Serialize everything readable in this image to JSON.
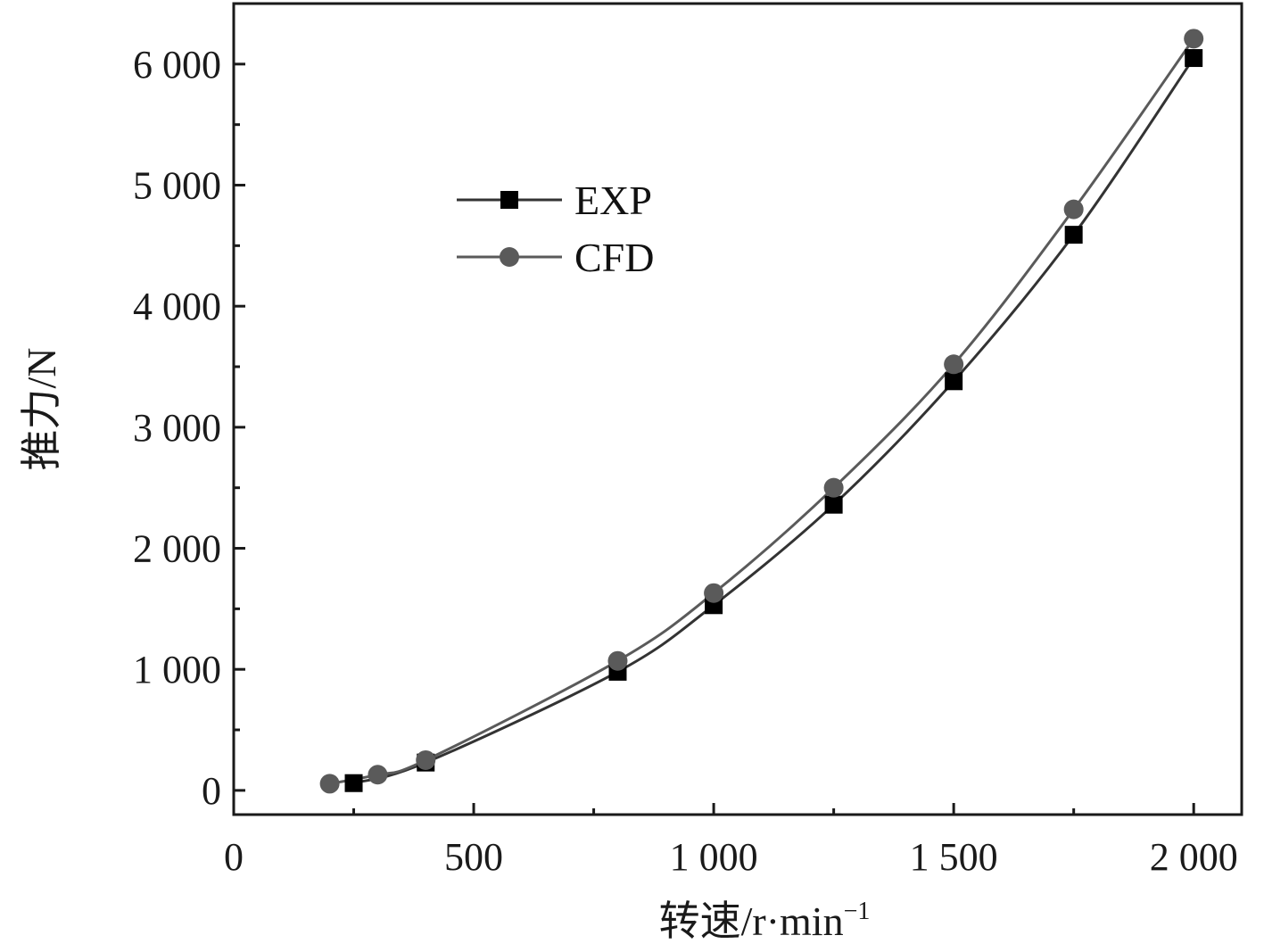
{
  "chart_data": {
    "type": "line",
    "xlabel": "转速/r·min",
    "xlabel_superscript": "−1",
    "ylabel": "推力/N",
    "xlim": [
      0,
      2100
    ],
    "ylim": [
      -200,
      6500
    ],
    "x_ticks": [
      0,
      500,
      1000,
      1500,
      2000
    ],
    "x_tick_labels": [
      "0",
      "500",
      "1 000",
      "1 500",
      "2 000"
    ],
    "x_minor_ticks": [
      250,
      750,
      1250,
      1750
    ],
    "y_ticks": [
      0,
      1000,
      2000,
      3000,
      4000,
      5000,
      6000
    ],
    "y_tick_labels": [
      "0",
      "1 000",
      "2 000",
      "3 000",
      "4 000",
      "5 000",
      "6 000"
    ],
    "y_minor_ticks": [
      500,
      1500,
      2500,
      3500,
      4500,
      5500
    ],
    "grid": false,
    "legend_position": "upper-left-center",
    "series": [
      {
        "name": "EXP",
        "marker": "square",
        "color": "#000000",
        "line_color": "#333333",
        "x": [
          250,
          400,
          800,
          1000,
          1250,
          1500,
          1750,
          2000
        ],
        "y": [
          60,
          230,
          980,
          1530,
          2360,
          3380,
          4590,
          6050
        ]
      },
      {
        "name": "CFD",
        "marker": "circle",
        "color": "#5a5a5a",
        "line_color": "#5a5a5a",
        "x": [
          200,
          300,
          400,
          800,
          1000,
          1250,
          1500,
          1750,
          2000
        ],
        "y": [
          55,
          130,
          250,
          1070,
          1630,
          2500,
          3520,
          4800,
          6210
        ]
      }
    ]
  }
}
